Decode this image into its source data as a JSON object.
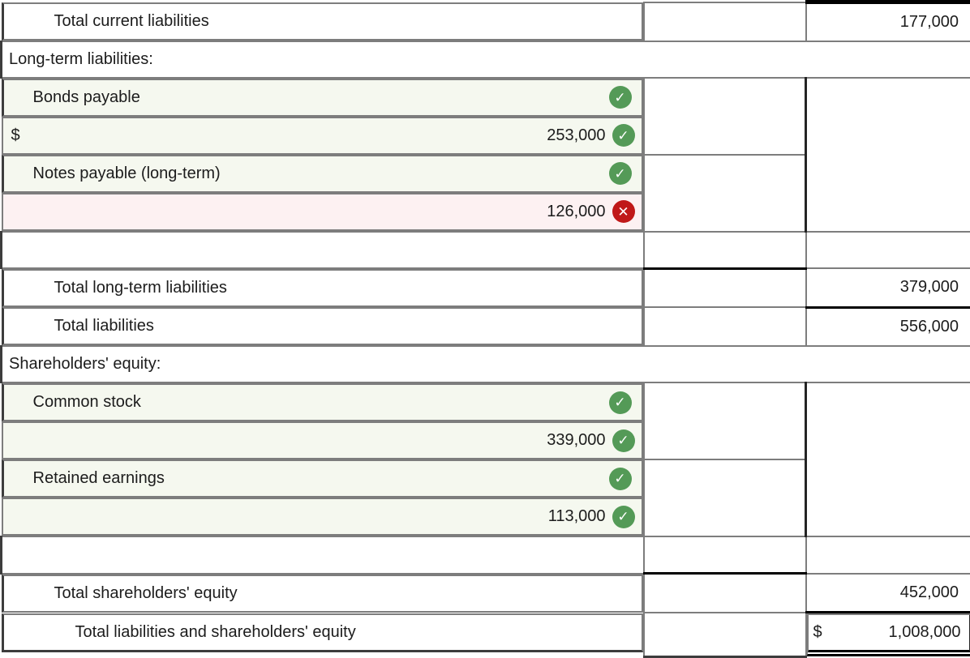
{
  "table": {
    "rows": [
      {
        "label": "Total current liabilities",
        "col3": "177,000"
      },
      {
        "label": "Long-term liabilities:"
      },
      {
        "label": "Bonds payable",
        "col2_dollar": "$",
        "col2": "253,000"
      },
      {
        "label": "Notes payable (long-term)",
        "col2": "126,000"
      },
      {
        "label": ""
      },
      {
        "label": "Total long-term liabilities",
        "col3": "379,000"
      },
      {
        "label": "Total liabilities",
        "col3": "556,000"
      },
      {
        "label": "Shareholders' equity:"
      },
      {
        "label": "Common stock",
        "col2": "339,000"
      },
      {
        "label": "Retained earnings",
        "col2": "113,000"
      },
      {
        "label": ""
      },
      {
        "label": "Total shareholders' equity",
        "col3": "452,000"
      },
      {
        "label": "Total liabilities and shareholders' equity",
        "col3_dollar": "$",
        "col3": "1,008,000"
      }
    ],
    "icons": {
      "correct": "✓",
      "incorrect": "✕"
    },
    "colors": {
      "correct_green": "#549a57",
      "incorrect_red": "#c01818",
      "answer_row_green_bg": "#f5f8ef",
      "wrong_answer_pink_bg": "#fdf1f2"
    }
  }
}
